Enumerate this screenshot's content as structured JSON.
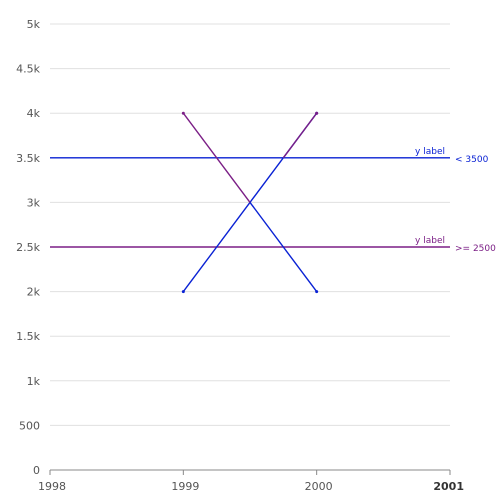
{
  "chart_data": {
    "type": "line",
    "title": "",
    "xlabel": "",
    "ylabel": "",
    "x_ticks": [
      "1998",
      "1999",
      "2000",
      "2001"
    ],
    "x_tick_bold_last": true,
    "xlim": [
      1998,
      2001
    ],
    "y_ticks": [
      "0",
      "500",
      "1k",
      "1.5k",
      "2k",
      "2.5k",
      "3k",
      "3.5k",
      "4k",
      "4.5k",
      "5k"
    ],
    "y_tick_values": [
      0,
      500,
      1000,
      1500,
      2000,
      2500,
      3000,
      3500,
      4000,
      4500,
      5000
    ],
    "ylim": [
      0,
      5000
    ],
    "grid": true,
    "series": [
      {
        "color": "#0a22d4",
        "points": [
          [
            1999,
            2000
          ],
          [
            2000,
            4000
          ]
        ]
      },
      {
        "color": "#0a22d4",
        "points": [
          [
            1999.5,
            3000
          ],
          [
            2000,
            2000
          ]
        ]
      },
      {
        "color": "#7b1f86",
        "points": [
          [
            1999,
            4000
          ],
          [
            1999.5,
            3000
          ]
        ]
      },
      {
        "color": "#7b1f86",
        "points": [
          [
            1999.75,
            3500
          ],
          [
            2000,
            4000
          ]
        ]
      }
    ],
    "reference_lines": [
      {
        "y": 3500,
        "label": "y label",
        "condition": "< 3500",
        "color": "#0a22d4"
      },
      {
        "y": 2500,
        "label": "y label",
        "condition": ">= 2500",
        "color": "#7b1f86"
      }
    ]
  }
}
